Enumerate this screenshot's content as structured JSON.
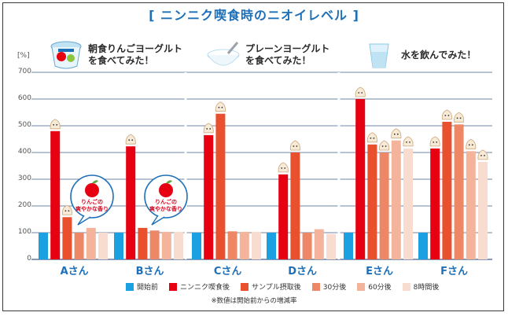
{
  "title": "[ ニンニク喫食時のニオイレベル ]",
  "y_unit": "[%]",
  "panels": [
    {
      "label": "朝食りんごヨーグルト を食べてみた！",
      "line1": "朝食りんごヨーグルト",
      "line2": "を食べてみた！",
      "icon": "yogurt-cup-icon"
    },
    {
      "label": "プレーンヨーグルト を食べてみた！",
      "line1": "プレーンヨーグルト",
      "line2": "を食べてみた！",
      "icon": "yogurt-bowl-icon"
    },
    {
      "label": "水を飲んでみた！",
      "line1": "水を飲んでみた！",
      "line2": "",
      "icon": "water-cup-icon"
    }
  ],
  "bubble": {
    "line1": "りんごの",
    "line2": "爽やかな香り"
  },
  "note": "※数値は開始前からの増減率",
  "colors": {
    "title": "#1d6fb8",
    "grid": "#3d5f8c"
  },
  "chart_data": {
    "type": "bar",
    "categories": [
      "Aさん",
      "Bさん",
      "Cさん",
      "Dさん",
      "Eさん",
      "Fさん"
    ],
    "ylim": [
      0,
      700
    ],
    "yticks": [
      0,
      100,
      200,
      300,
      400,
      500,
      600,
      700
    ],
    "series": [
      {
        "name": "開始前",
        "color": "#1ba1e2",
        "values": [
          100,
          100,
          100,
          100,
          100,
          100
        ]
      },
      {
        "name": "ニンニク喫食後",
        "color": "#e60012",
        "values": [
          480,
          423,
          465,
          318,
          600,
          415
        ]
      },
      {
        "name": "サンプル摂取後",
        "color": "#e8502e",
        "values": [
          158,
          118,
          545,
          400,
          430,
          515
        ]
      },
      {
        "name": "30分後",
        "color": "#ee8766",
        "values": [
          100,
          108,
          105,
          100,
          400,
          505
        ]
      },
      {
        "name": "60分後",
        "color": "#f4b49c",
        "values": [
          118,
          103,
          103,
          113,
          445,
          405
        ]
      },
      {
        "name": "8時間後",
        "color": "#f9dcd0",
        "values": [
          100,
          103,
          103,
          95,
          415,
          365
        ]
      }
    ]
  }
}
